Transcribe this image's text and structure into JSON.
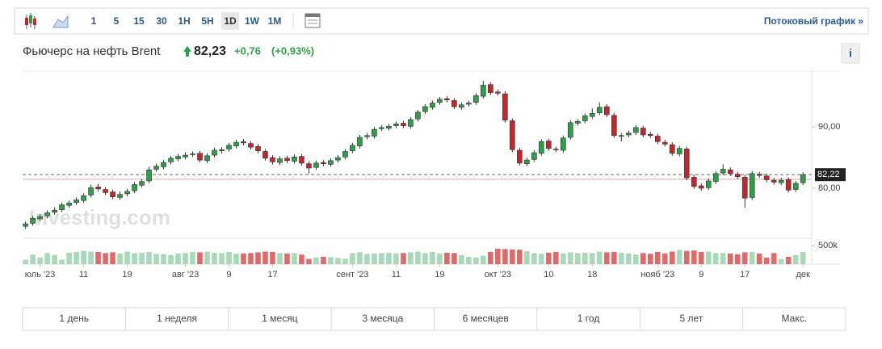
{
  "toolbar": {
    "intervals": [
      "1",
      "5",
      "15",
      "30",
      "1H",
      "5H",
      "1D",
      "1W",
      "1M"
    ],
    "selected_index": 6,
    "streaming_link": "Потоковый график »"
  },
  "header": {
    "name": "Фьючерс на нефть Brent",
    "price": "82,23",
    "change": "+0,76",
    "change_percent": "(+0,93%)",
    "info": "i"
  },
  "chart_data": {
    "type": "candlestick",
    "watermark": "Investing.com",
    "up_color": "#2e9e4a",
    "down_color": "#c0282d",
    "volume_up_color": "#a9d9b8",
    "volume_down_color": "#e06a6a",
    "xlim": [
      -0.4,
      108.2
    ],
    "ylim": [
      72.5,
      99.1
    ],
    "volume_lim": [
      0,
      700
    ],
    "yticks": [
      {
        "value": 80,
        "label": "80,00"
      },
      {
        "value": 90,
        "label": "90,00"
      }
    ],
    "volume_ticks": [
      {
        "value": 500,
        "label": "500k"
      }
    ],
    "last_price": {
      "value": 82.22,
      "label": "82,22"
    },
    "previous_close": 81.47,
    "xticks": [
      {
        "value": 2,
        "label": "юль '23"
      },
      {
        "value": 8,
        "label": "11"
      },
      {
        "value": 14,
        "label": "19"
      },
      {
        "value": 22,
        "label": "авг '23"
      },
      {
        "value": 28,
        "label": "9"
      },
      {
        "value": 34,
        "label": "17"
      },
      {
        "value": 45,
        "label": "сент '23"
      },
      {
        "value": 51,
        "label": "11"
      },
      {
        "value": 57,
        "label": "19"
      },
      {
        "value": 65,
        "label": "окт '23"
      },
      {
        "value": 72,
        "label": "10"
      },
      {
        "value": 78,
        "label": "18"
      },
      {
        "value": 87,
        "label": "нояб '23"
      },
      {
        "value": 93,
        "label": "9"
      },
      {
        "value": 99,
        "label": "17"
      },
      {
        "value": 107,
        "label": "дек"
      }
    ],
    "open": [
      73.8,
      74.3,
      75.0,
      75.5,
      76.1,
      76.5,
      77.2,
      77.7,
      78.0,
      78.9,
      80.2,
      79.8,
      79.4,
      78.5,
      79.1,
      79.6,
      80.5,
      81.2,
      83.1,
      83.5,
      84.3,
      84.8,
      85.1,
      85.5,
      85.7,
      84.5,
      85.4,
      86.1,
      86.4,
      86.9,
      87.6,
      87.3,
      86.8,
      86.0,
      85.0,
      84.2,
      84.9,
      84.4,
      85.2,
      84.0,
      83.4,
      84.2,
      83.9,
      84.6,
      85.1,
      86.1,
      86.9,
      88.4,
      88.5,
      89.7,
      89.8,
      90.2,
      90.6,
      90.1,
      91.3,
      92.5,
      93.2,
      94.0,
      94.6,
      94.3,
      93.2,
      93.7,
      94.0,
      95.0,
      96.9,
      95.7,
      95.4,
      91.0,
      86.2,
      84.0,
      84.7,
      85.7,
      87.7,
      86.4,
      86.2,
      88.3,
      90.6,
      91.0,
      91.7,
      92.3,
      93.3,
      91.9,
      88.5,
      88.7,
      89.1,
      89.8,
      88.8,
      88.5,
      87.5,
      87.1,
      85.6,
      86.4,
      81.8,
      80.4,
      80.1,
      81.1,
      82.5,
      83.0,
      82.3,
      81.8,
      78.5,
      82.3,
      82.0,
      81.3,
      80.9,
      81.4,
      79.8,
      80.9
    ],
    "high": [
      74.6,
      75.5,
      75.8,
      76.4,
      76.9,
      77.7,
      78.0,
      78.5,
      79.2,
      80.6,
      80.7,
      80.2,
      79.8,
      79.5,
      79.9,
      81.0,
      81.5,
      83.5,
      84.0,
      84.6,
      85.3,
      85.6,
      85.9,
      86.0,
      86.1,
      85.7,
      86.6,
      86.7,
      87.4,
      87.9,
      88.0,
      87.7,
      87.2,
      86.4,
      85.4,
      85.2,
      85.3,
      85.5,
      85.6,
      84.4,
      84.5,
      84.6,
      84.9,
      85.4,
      86.4,
      87.4,
      88.7,
      89.0,
      90.0,
      90.3,
      90.5,
      90.9,
      91.0,
      91.6,
      92.8,
      93.7,
      94.3,
      94.9,
      95.0,
      94.7,
      94.0,
      94.3,
      95.5,
      97.5,
      97.3,
      96.1,
      95.8,
      91.4,
      86.6,
      85.0,
      86.2,
      88.0,
      88.1,
      86.8,
      88.6,
      91.1,
      91.3,
      92.2,
      93.0,
      94.0,
      93.7,
      92.3,
      89.0,
      89.4,
      90.3,
      90.2,
      89.2,
      88.9,
      87.9,
      87.5,
      86.9,
      86.8,
      82.2,
      80.8,
      81.6,
      82.8,
      83.9,
      83.4,
      82.7,
      82.2,
      82.8,
      82.7,
      82.4,
      81.7,
      81.7,
      81.8,
      81.2,
      82.6
    ],
    "low": [
      73.4,
      73.9,
      74.6,
      75.1,
      75.7,
      76.1,
      76.8,
      77.3,
      77.6,
      78.5,
      79.5,
      78.9,
      78.2,
      78.1,
      78.7,
      79.2,
      80.1,
      80.8,
      82.7,
      83.1,
      83.9,
      84.4,
      84.7,
      85.1,
      84.2,
      84.1,
      85.0,
      85.7,
      86.0,
      86.5,
      87.0,
      86.3,
      85.7,
      84.5,
      83.9,
      83.8,
      84.1,
      84.0,
      83.7,
      82.4,
      83.0,
      83.6,
      83.5,
      84.2,
      84.7,
      85.7,
      86.5,
      88.0,
      88.1,
      89.3,
      89.4,
      89.8,
      89.8,
      89.7,
      90.9,
      92.1,
      92.8,
      93.6,
      94.0,
      92.9,
      92.8,
      93.3,
      93.6,
      94.6,
      95.2,
      95.1,
      90.7,
      85.9,
      83.7,
      83.6,
      84.3,
      85.3,
      86.1,
      85.9,
      85.8,
      87.9,
      90.2,
      90.6,
      91.3,
      91.9,
      91.6,
      88.2,
      87.6,
      88.3,
      88.7,
      88.3,
      88.2,
      87.2,
      86.8,
      85.3,
      85.2,
      81.3,
      79.9,
      79.6,
      79.7,
      80.7,
      82.1,
      82.0,
      81.5,
      76.8,
      78.1,
      81.7,
      81.0,
      80.6,
      80.5,
      79.3,
      79.4,
      80.5
    ],
    "close": [
      74.2,
      75.1,
      75.4,
      76.0,
      76.4,
      77.3,
      77.6,
      78.1,
      78.8,
      80.1,
      79.9,
      79.3,
      78.6,
      79.0,
      79.5,
      80.6,
      81.1,
      83.0,
      83.6,
      84.2,
      84.9,
      85.2,
      85.4,
      85.6,
      84.6,
      85.3,
      86.2,
      86.3,
      87.0,
      87.5,
      87.4,
      86.7,
      86.1,
      84.9,
      84.3,
      84.8,
      84.5,
      85.1,
      84.1,
      83.3,
      84.1,
      84.0,
      84.5,
      85.0,
      86.0,
      87.0,
      88.3,
      88.6,
      89.6,
      89.9,
      90.1,
      90.5,
      90.2,
      91.2,
      92.4,
      93.3,
      93.9,
      94.5,
      94.4,
      93.3,
      93.6,
      93.9,
      95.1,
      96.8,
      95.6,
      95.5,
      91.1,
      86.3,
      84.1,
      84.6,
      85.8,
      87.6,
      86.5,
      86.3,
      88.2,
      90.7,
      90.9,
      91.8,
      92.2,
      93.2,
      92.0,
      88.6,
      88.6,
      89.0,
      89.9,
      88.7,
      88.6,
      87.6,
      87.2,
      85.7,
      86.5,
      81.7,
      80.3,
      80.0,
      81.2,
      82.4,
      83.1,
      82.4,
      81.9,
      78.4,
      82.4,
      82.1,
      81.4,
      81.0,
      81.3,
      79.7,
      80.8,
      82.23
    ],
    "volume": [
      120,
      260,
      180,
      300,
      250,
      120,
      310,
      330,
      360,
      340,
      330,
      300,
      320,
      290,
      340,
      300,
      310,
      330,
      280,
      270,
      250,
      290,
      300,
      330,
      320,
      340,
      310,
      300,
      330,
      280,
      290,
      300,
      320,
      340,
      330,
      300,
      290,
      300,
      260,
      140,
      180,
      200,
      190,
      170,
      150,
      300,
      320,
      280,
      290,
      300,
      310,
      290,
      300,
      320,
      340,
      300,
      330,
      290,
      310,
      300,
      250,
      200,
      180,
      230,
      330,
      420,
      410,
      400,
      390,
      350,
      300,
      280,
      310,
      330,
      290,
      320,
      300,
      310,
      300,
      340,
      320,
      330,
      310,
      290,
      260,
      300,
      280,
      330,
      290,
      340,
      390,
      360,
      370,
      330,
      340,
      300,
      310,
      290,
      270,
      320,
      330,
      290,
      180,
      300,
      140,
      200,
      250,
      330
    ]
  },
  "ranges": [
    "1 день",
    "1 неделя",
    "1 месяц",
    "3 месяца",
    "6 месяцев",
    "1 год",
    "5 лет",
    "Макс."
  ]
}
